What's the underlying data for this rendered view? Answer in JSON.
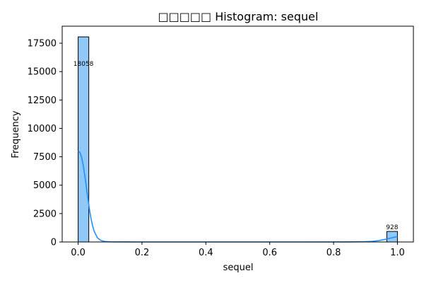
{
  "chart_data": {
    "type": "bar",
    "title": "□□□□□ Histogram: sequel",
    "xlabel": "sequel",
    "ylabel": "Frequency",
    "xlim": [
      -0.05,
      1.05
    ],
    "ylim": [
      0,
      19000
    ],
    "xticks": [
      0.0,
      0.2,
      0.4,
      0.6,
      0.8,
      1.0
    ],
    "xtick_labels": [
      "0.0",
      "0.2",
      "0.4",
      "0.6",
      "0.8",
      "1.0"
    ],
    "yticks": [
      0,
      2500,
      5000,
      7500,
      10000,
      12500,
      15000,
      17500
    ],
    "ytick_labels": [
      "0",
      "2500",
      "5000",
      "7500",
      "10000",
      "12500",
      "15000",
      "17500"
    ],
    "bins": [
      {
        "x0": 0.0,
        "x1": 0.0333,
        "count": 18058,
        "label": "18058"
      },
      {
        "x0": 0.9667,
        "x1": 1.0,
        "count": 928,
        "label": "928"
      }
    ],
    "kde": {
      "x": [
        0.0,
        0.005,
        0.01,
        0.015,
        0.02,
        0.025,
        0.03,
        0.035,
        0.04,
        0.045,
        0.05,
        0.06,
        0.07,
        0.08,
        0.09,
        0.1,
        0.15,
        0.2,
        0.3,
        0.5,
        0.7,
        0.85,
        0.9,
        0.92,
        0.94,
        0.96,
        0.97,
        0.98,
        0.99,
        1.0
      ],
      "y": [
        8000,
        7900,
        7550,
        6900,
        6000,
        5000,
        3950,
        2950,
        2100,
        1450,
        950,
        380,
        150,
        60,
        25,
        10,
        2,
        0,
        0,
        0,
        0,
        5,
        25,
        55,
        110,
        220,
        290,
        360,
        420,
        470
      ]
    },
    "bar_color": "#90c8f8",
    "bar_edge_color": "#000000",
    "kde_color": "#1e90ff",
    "grid": false,
    "legend": "none"
  }
}
